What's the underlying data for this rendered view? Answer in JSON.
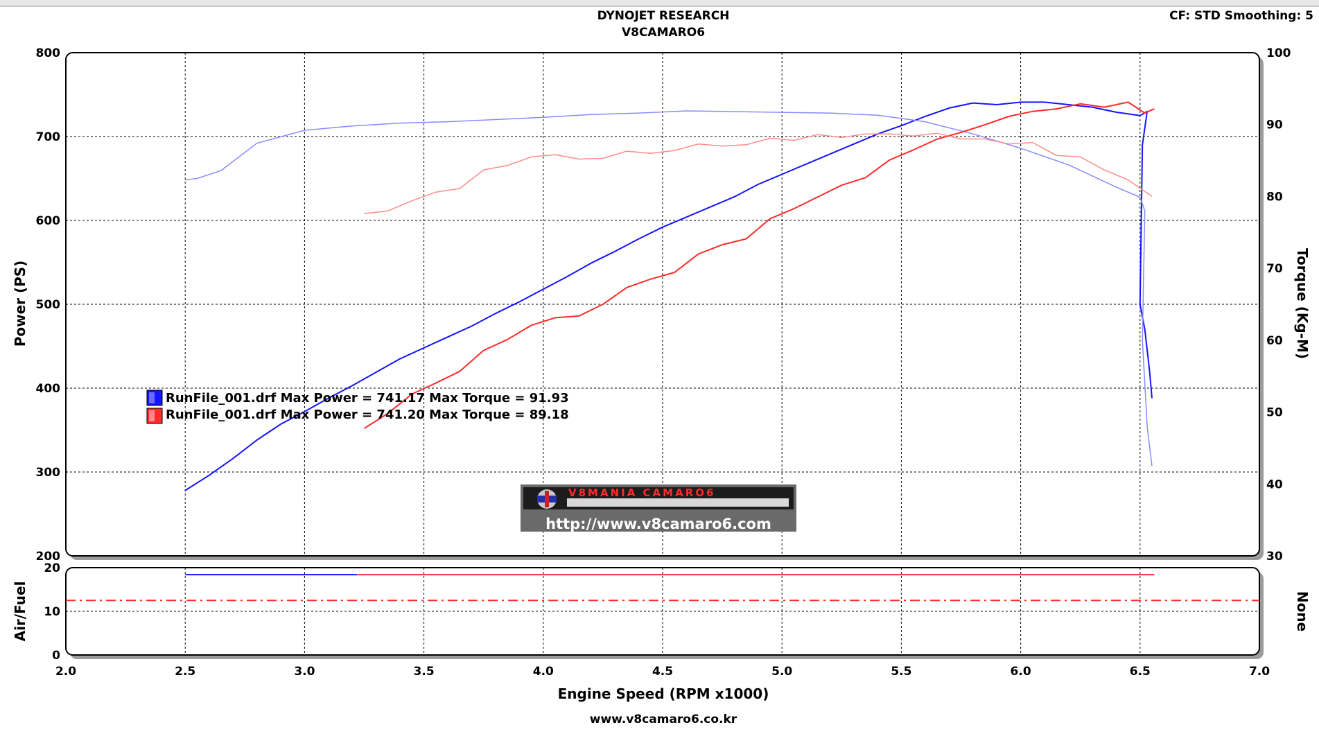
{
  "header": {
    "title": "DYNOJET RESEARCH",
    "subtitle": "V8CAMARO6",
    "settings": "CF: STD  Smoothing: 5"
  },
  "footer": {
    "url": "www.v8camaro6.co.kr"
  },
  "watermark": {
    "brand": "V8MANIA CAMARO6",
    "url": "http://www.v8camaro6.com"
  },
  "legend": [
    {
      "text": "RunFile_001.drf Max Power = 741.17 Max Torque = 91.93",
      "color": "#1414ff"
    },
    {
      "text": "RunFile_001.drf Max Power = 741.20 Max Torque = 89.18",
      "color": "#ff2a2a"
    }
  ],
  "chart_data": [
    {
      "type": "line",
      "xlabel": "Engine Speed (RPM x1000)",
      "ylabel": "Power (PS)",
      "y2label": "Torque (Kg-M)",
      "xlim": [
        2.0,
        7.0
      ],
      "ylim": [
        200,
        800
      ],
      "y2lim": [
        30,
        100
      ],
      "xticks": [
        "2.0",
        "2.5",
        "3.0",
        "3.5",
        "4.0",
        "4.5",
        "5.0",
        "5.5",
        "6.0",
        "6.5",
        "7.0"
      ],
      "yticks": [
        "200",
        "300",
        "400",
        "500",
        "600",
        "700",
        "800"
      ],
      "y2ticks": [
        "30",
        "40",
        "50",
        "60",
        "70",
        "80",
        "90",
        "100"
      ],
      "grid": true,
      "series": [
        {
          "axis": "left",
          "color": "#1414ff",
          "width": 2,
          "x": [
            2.5,
            2.6,
            2.7,
            2.8,
            2.9,
            3.0,
            3.1,
            3.2,
            3.3,
            3.4,
            3.5,
            3.6,
            3.7,
            3.8,
            3.9,
            4.0,
            4.1,
            4.2,
            4.3,
            4.4,
            4.5,
            4.6,
            4.7,
            4.8,
            4.9,
            5.0,
            5.1,
            5.2,
            5.3,
            5.4,
            5.5,
            5.6,
            5.7,
            5.8,
            5.9,
            6.0,
            6.1,
            6.2,
            6.3,
            6.4,
            6.5,
            6.53,
            6.51,
            6.5,
            6.52,
            6.54,
            6.55
          ],
          "y": [
            278,
            296,
            316,
            338,
            357,
            372,
            388,
            403,
            419,
            435,
            448,
            461,
            474,
            489,
            503,
            518,
            533,
            549,
            563,
            578,
            592,
            604,
            616,
            628,
            643,
            655,
            667,
            679,
            691,
            703,
            713,
            724,
            734,
            740,
            738,
            741,
            741,
            738,
            735,
            729,
            725,
            730,
            690,
            500,
            470,
            420,
            388
          ]
        },
        {
          "axis": "right",
          "color": "#8a8aff",
          "width": 1.5,
          "x": [
            2.5,
            2.55,
            2.65,
            2.8,
            3.0,
            3.2,
            3.4,
            3.6,
            3.8,
            4.0,
            4.2,
            4.4,
            4.6,
            4.8,
            5.0,
            5.2,
            5.4,
            5.6,
            5.8,
            6.0,
            6.2,
            6.4,
            6.5,
            6.52,
            6.51,
            6.53,
            6.55
          ],
          "y": [
            82.3,
            82.5,
            83.6,
            87.4,
            89.2,
            89.8,
            90.2,
            90.4,
            90.7,
            91.0,
            91.4,
            91.6,
            91.9,
            91.8,
            91.7,
            91.6,
            91.3,
            90.4,
            88.7,
            86.7,
            84.4,
            81.3,
            79.9,
            78,
            60,
            48,
            42.5
          ]
        },
        {
          "axis": "left",
          "color": "#ff2a2a",
          "width": 2,
          "x": [
            3.25,
            3.35,
            3.45,
            3.55,
            3.65,
            3.75,
            3.85,
            3.95,
            4.05,
            4.15,
            4.25,
            4.35,
            4.45,
            4.55,
            4.65,
            4.75,
            4.85,
            4.95,
            5.05,
            5.15,
            5.25,
            5.35,
            5.45,
            5.55,
            5.65,
            5.75,
            5.85,
            5.95,
            6.05,
            6.15,
            6.25,
            6.35,
            6.45,
            6.52,
            6.56
          ],
          "y": [
            352,
            370,
            393,
            406,
            420,
            445,
            458,
            475,
            484,
            486,
            500,
            520,
            530,
            538,
            560,
            571,
            578,
            602,
            614,
            628,
            642,
            651,
            672,
            684,
            697,
            705,
            714,
            724,
            730,
            733,
            739,
            735,
            741,
            728,
            733
          ]
        },
        {
          "axis": "right",
          "color": "#ff8a8a",
          "width": 1.5,
          "x": [
            3.25,
            3.35,
            3.45,
            3.55,
            3.65,
            3.75,
            3.85,
            3.95,
            4.05,
            4.15,
            4.25,
            4.35,
            4.45,
            4.55,
            4.65,
            4.75,
            4.85,
            4.95,
            5.05,
            5.15,
            5.25,
            5.35,
            5.45,
            5.55,
            5.65,
            5.75,
            5.85,
            5.95,
            6.05,
            6.15,
            6.25,
            6.35,
            6.45,
            6.55
          ],
          "y": [
            77.6,
            78,
            79.4,
            80.6,
            81.1,
            83.7,
            84.3,
            85.5,
            85.8,
            85.2,
            85.3,
            86.3,
            86.0,
            86.4,
            87.3,
            87.0,
            87.2,
            88.1,
            87.8,
            88.6,
            88.2,
            88.7,
            88.7,
            88.4,
            88.8,
            88.0,
            88.0,
            87.3,
            87.5,
            85.7,
            85.5,
            83.7,
            82.3,
            80.0
          ]
        }
      ]
    },
    {
      "type": "line",
      "ylabel": "Air/Fuel",
      "y2label": "None",
      "xlim": [
        2.0,
        7.0
      ],
      "ylim": [
        0,
        20
      ],
      "yticks": [
        "0",
        "10",
        "20"
      ],
      "grid": true,
      "series": [
        {
          "color": "#1414ff",
          "width": 2,
          "x": [
            2.5,
            3.22
          ],
          "y": [
            18.4,
            18.4
          ]
        },
        {
          "color": "#ff2a2a",
          "width": 2,
          "x": [
            3.22,
            6.56
          ],
          "y": [
            18.4,
            18.4
          ]
        },
        {
          "color": "#ff2a2a",
          "width": 2,
          "dash": "dashdot",
          "x": [
            2.0,
            7.0
          ],
          "y": [
            12.5,
            12.5
          ]
        }
      ]
    }
  ]
}
